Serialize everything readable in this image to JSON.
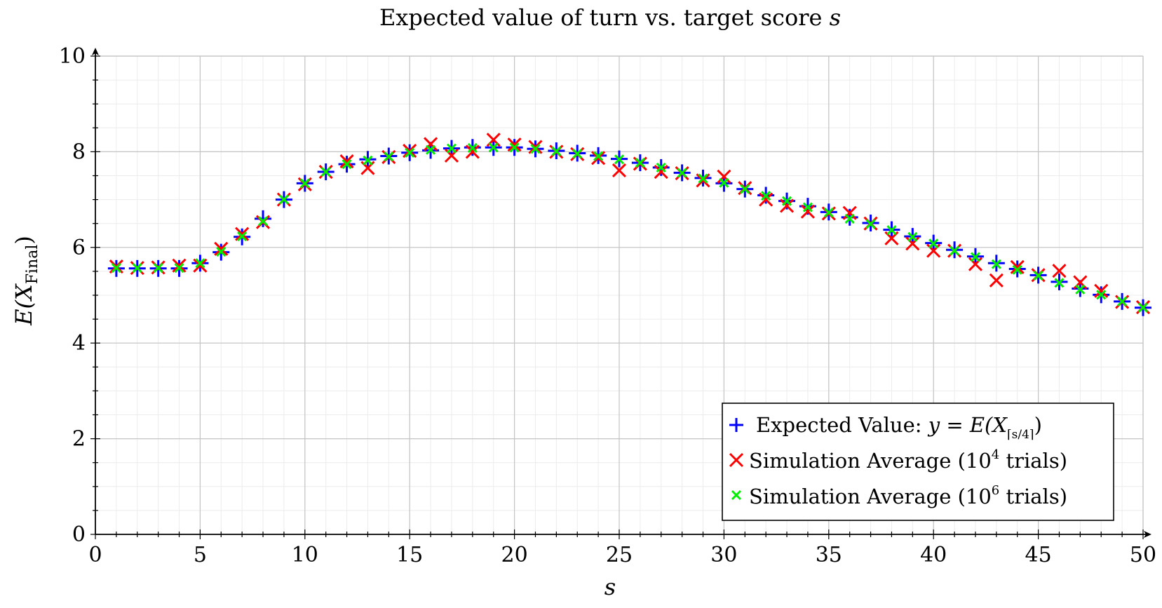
{
  "chart_data": {
    "type": "scatter",
    "title_main": "Expected value of turn vs. target score",
    "title_var": "s",
    "xlabel": "s",
    "ylabel_main": "E(X",
    "ylabel_sub": "Final",
    "ylabel_close": ")",
    "xlim": [
      0,
      50
    ],
    "ylim": [
      0,
      10
    ],
    "x_ticks": [
      0,
      5,
      10,
      15,
      20,
      25,
      30,
      35,
      40,
      45,
      50
    ],
    "y_ticks": [
      0,
      2,
      4,
      6,
      8,
      10
    ],
    "grid": true,
    "legend_position": "bottom-right",
    "legend": {
      "ev_prefix": "Expected Value: ",
      "ev_formula": "y = E(X",
      "ev_sub": "⌈s/4⌉",
      "ev_close": ")",
      "sim4_prefix": "Simulation Average (10",
      "sim4_exp": "4",
      "sim4_suffix": " trials)",
      "sim6_prefix": "Simulation Average (10",
      "sim6_exp": "6",
      "sim6_suffix": " trials)"
    },
    "x": [
      1,
      2,
      3,
      4,
      5,
      6,
      7,
      8,
      9,
      10,
      11,
      12,
      13,
      14,
      15,
      16,
      17,
      18,
      19,
      20,
      21,
      22,
      23,
      24,
      25,
      26,
      27,
      28,
      29,
      30,
      31,
      32,
      33,
      34,
      35,
      36,
      37,
      38,
      39,
      40,
      41,
      42,
      43,
      44,
      45,
      46,
      47,
      48,
      49,
      50
    ],
    "series": [
      {
        "name": "Expected Value",
        "color": "#0000ff",
        "marker": "plus",
        "values": [
          5.56,
          5.56,
          5.56,
          5.56,
          5.67,
          5.9,
          6.22,
          6.6,
          7.0,
          7.34,
          7.58,
          7.74,
          7.84,
          7.91,
          7.98,
          8.03,
          8.07,
          8.09,
          8.09,
          8.09,
          8.06,
          8.02,
          7.97,
          7.92,
          7.85,
          7.77,
          7.67,
          7.56,
          7.45,
          7.34,
          7.22,
          7.09,
          6.97,
          6.86,
          6.74,
          6.63,
          6.51,
          6.37,
          6.23,
          6.09,
          5.95,
          5.81,
          5.67,
          5.55,
          5.42,
          5.28,
          5.14,
          5.01,
          4.87,
          4.74
        ]
      },
      {
        "name": "Simulation Average (10^4 trials)",
        "color": "#ff0000",
        "marker": "cross",
        "values": [
          5.6,
          5.57,
          5.58,
          5.62,
          5.62,
          5.97,
          6.28,
          6.53,
          7.0,
          7.32,
          7.58,
          7.8,
          7.66,
          7.89,
          8.02,
          8.16,
          7.92,
          8.0,
          8.25,
          8.15,
          8.1,
          8.0,
          7.95,
          7.87,
          7.61,
          7.75,
          7.58,
          7.55,
          7.4,
          7.48,
          7.24,
          7.0,
          6.87,
          6.75,
          6.71,
          6.72,
          6.5,
          6.19,
          6.08,
          5.93,
          5.93,
          5.65,
          5.31,
          5.59,
          5.42,
          5.51,
          5.27,
          5.09,
          4.86,
          4.75
        ]
      },
      {
        "name": "Simulation Average (10^6 trials)",
        "color": "#00ee00",
        "marker": "x",
        "values": [
          5.57,
          5.57,
          5.57,
          5.57,
          5.67,
          5.91,
          6.23,
          6.55,
          7.0,
          7.34,
          7.58,
          7.74,
          7.82,
          7.9,
          7.98,
          8.04,
          8.07,
          8.08,
          8.09,
          8.09,
          8.06,
          8.01,
          7.96,
          7.91,
          7.84,
          7.77,
          7.67,
          7.56,
          7.44,
          7.35,
          7.22,
          7.08,
          6.97,
          6.84,
          6.73,
          6.6,
          6.49,
          6.36,
          6.22,
          6.08,
          5.93,
          5.8,
          5.65,
          5.53,
          5.41,
          5.26,
          5.12,
          5.01,
          4.87,
          4.74
        ]
      }
    ]
  }
}
